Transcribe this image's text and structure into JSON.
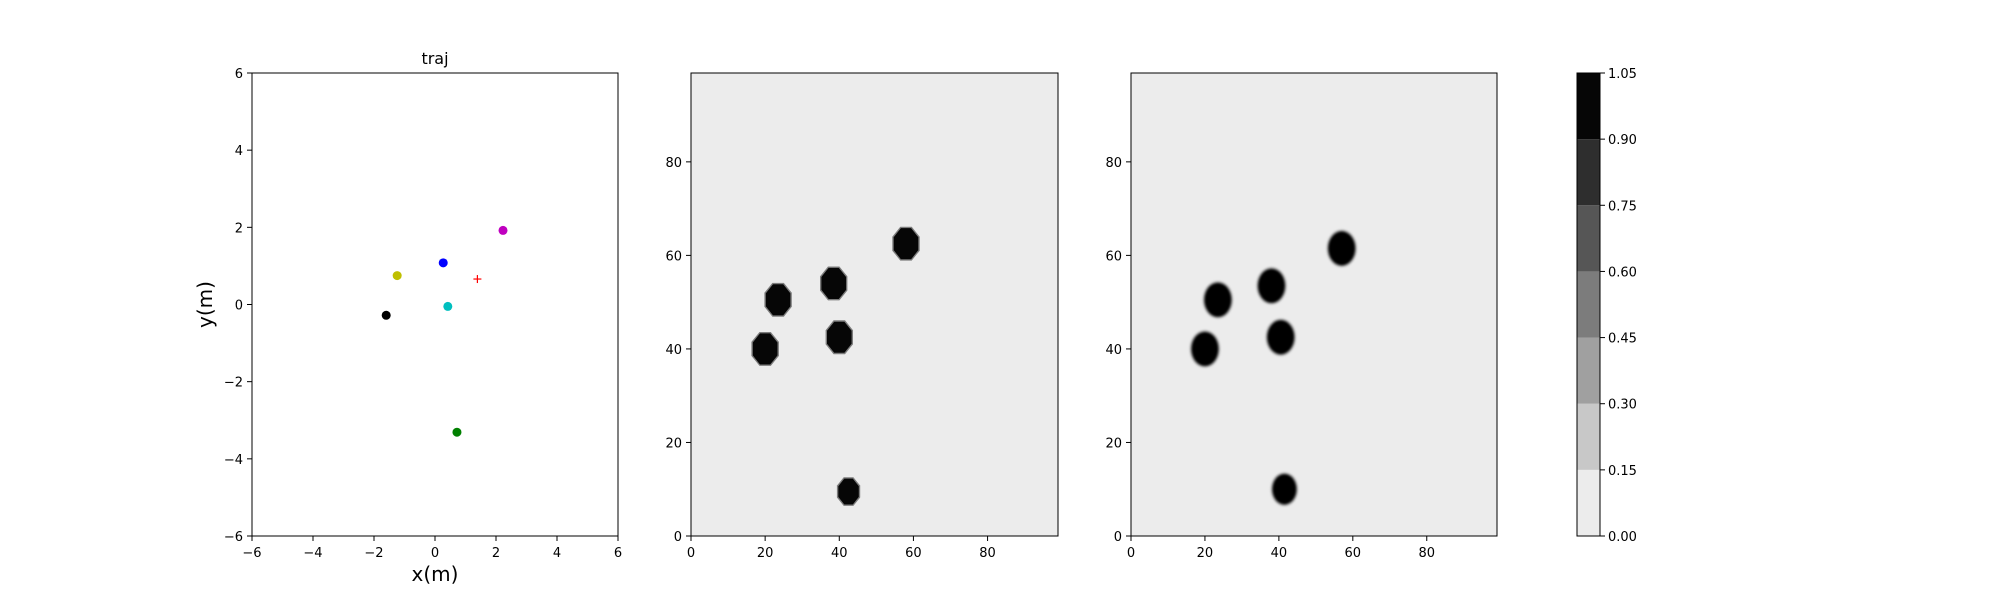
{
  "chart_data": [
    {
      "type": "scatter",
      "title": "traj",
      "xlabel": "x(m)",
      "ylabel": "y(m)",
      "xlim": [
        -6,
        6
      ],
      "ylim": [
        -6,
        6
      ],
      "xticks": [
        -6,
        -4,
        -2,
        0,
        2,
        4,
        6
      ],
      "yticks": [
        -6,
        -4,
        -2,
        0,
        2,
        4,
        6
      ],
      "grid": false,
      "points": [
        {
          "x": -1.6,
          "y": -0.28,
          "color": "#000000",
          "marker": "circle"
        },
        {
          "x": -1.24,
          "y": 0.75,
          "color": "#bfbf00",
          "marker": "circle"
        },
        {
          "x": 0.27,
          "y": 1.08,
          "color": "#0000ff",
          "marker": "circle"
        },
        {
          "x": 0.42,
          "y": -0.05,
          "color": "#00bfbf",
          "marker": "circle"
        },
        {
          "x": 2.23,
          "y": 1.92,
          "color": "#bf00bf",
          "marker": "circle"
        },
        {
          "x": 0.72,
          "y": -3.31,
          "color": "#008000",
          "marker": "circle"
        },
        {
          "x": 1.39,
          "y": 0.66,
          "color": "#ff0000",
          "marker": "plus"
        }
      ]
    },
    {
      "type": "heatmap",
      "title": "",
      "xlim": [
        0,
        99
      ],
      "ylim": [
        0,
        99
      ],
      "xticks": [
        0,
        20,
        40,
        60,
        80
      ],
      "yticks": [
        0,
        20,
        40,
        60,
        80
      ],
      "background_value": 0.0,
      "blob_value": 1.0,
      "blob_shape": "octagon",
      "blobs": [
        {
          "x": 20,
          "y": 40,
          "r": 3.6
        },
        {
          "x": 23.5,
          "y": 50.5,
          "r": 3.6
        },
        {
          "x": 38.5,
          "y": 54,
          "r": 3.6
        },
        {
          "x": 40,
          "y": 42.5,
          "r": 3.6
        },
        {
          "x": 58,
          "y": 62.5,
          "r": 3.6
        },
        {
          "x": 42.5,
          "y": 9.5,
          "r": 3.0
        }
      ]
    },
    {
      "type": "heatmap",
      "title": "",
      "xlim": [
        0,
        99
      ],
      "ylim": [
        0,
        99
      ],
      "xticks": [
        0,
        20,
        40,
        60,
        80
      ],
      "yticks": [
        0,
        20,
        40,
        60,
        80
      ],
      "background_value": 0.0,
      "blob_value": 1.0,
      "blob_shape": "round",
      "blobs": [
        {
          "x": 20,
          "y": 40,
          "r": 3.6
        },
        {
          "x": 23.5,
          "y": 50.5,
          "r": 3.6
        },
        {
          "x": 38,
          "y": 53.5,
          "r": 3.6
        },
        {
          "x": 40.5,
          "y": 42.5,
          "r": 3.6
        },
        {
          "x": 57,
          "y": 61.5,
          "r": 3.6
        },
        {
          "x": 41.5,
          "y": 10,
          "r": 3.2
        }
      ]
    }
  ],
  "colorbar": {
    "levels": [
      0.0,
      0.15,
      0.3,
      0.45,
      0.6,
      0.75,
      0.9,
      1.05
    ],
    "tick_labels": [
      "0.00",
      "0.15",
      "0.30",
      "0.45",
      "0.60",
      "0.75",
      "0.90",
      "1.05"
    ],
    "colors": [
      "#ececec",
      "#c8c8c8",
      "#a0a0a0",
      "#7c7c7c",
      "#565656",
      "#2e2e2e",
      "#060606"
    ]
  }
}
